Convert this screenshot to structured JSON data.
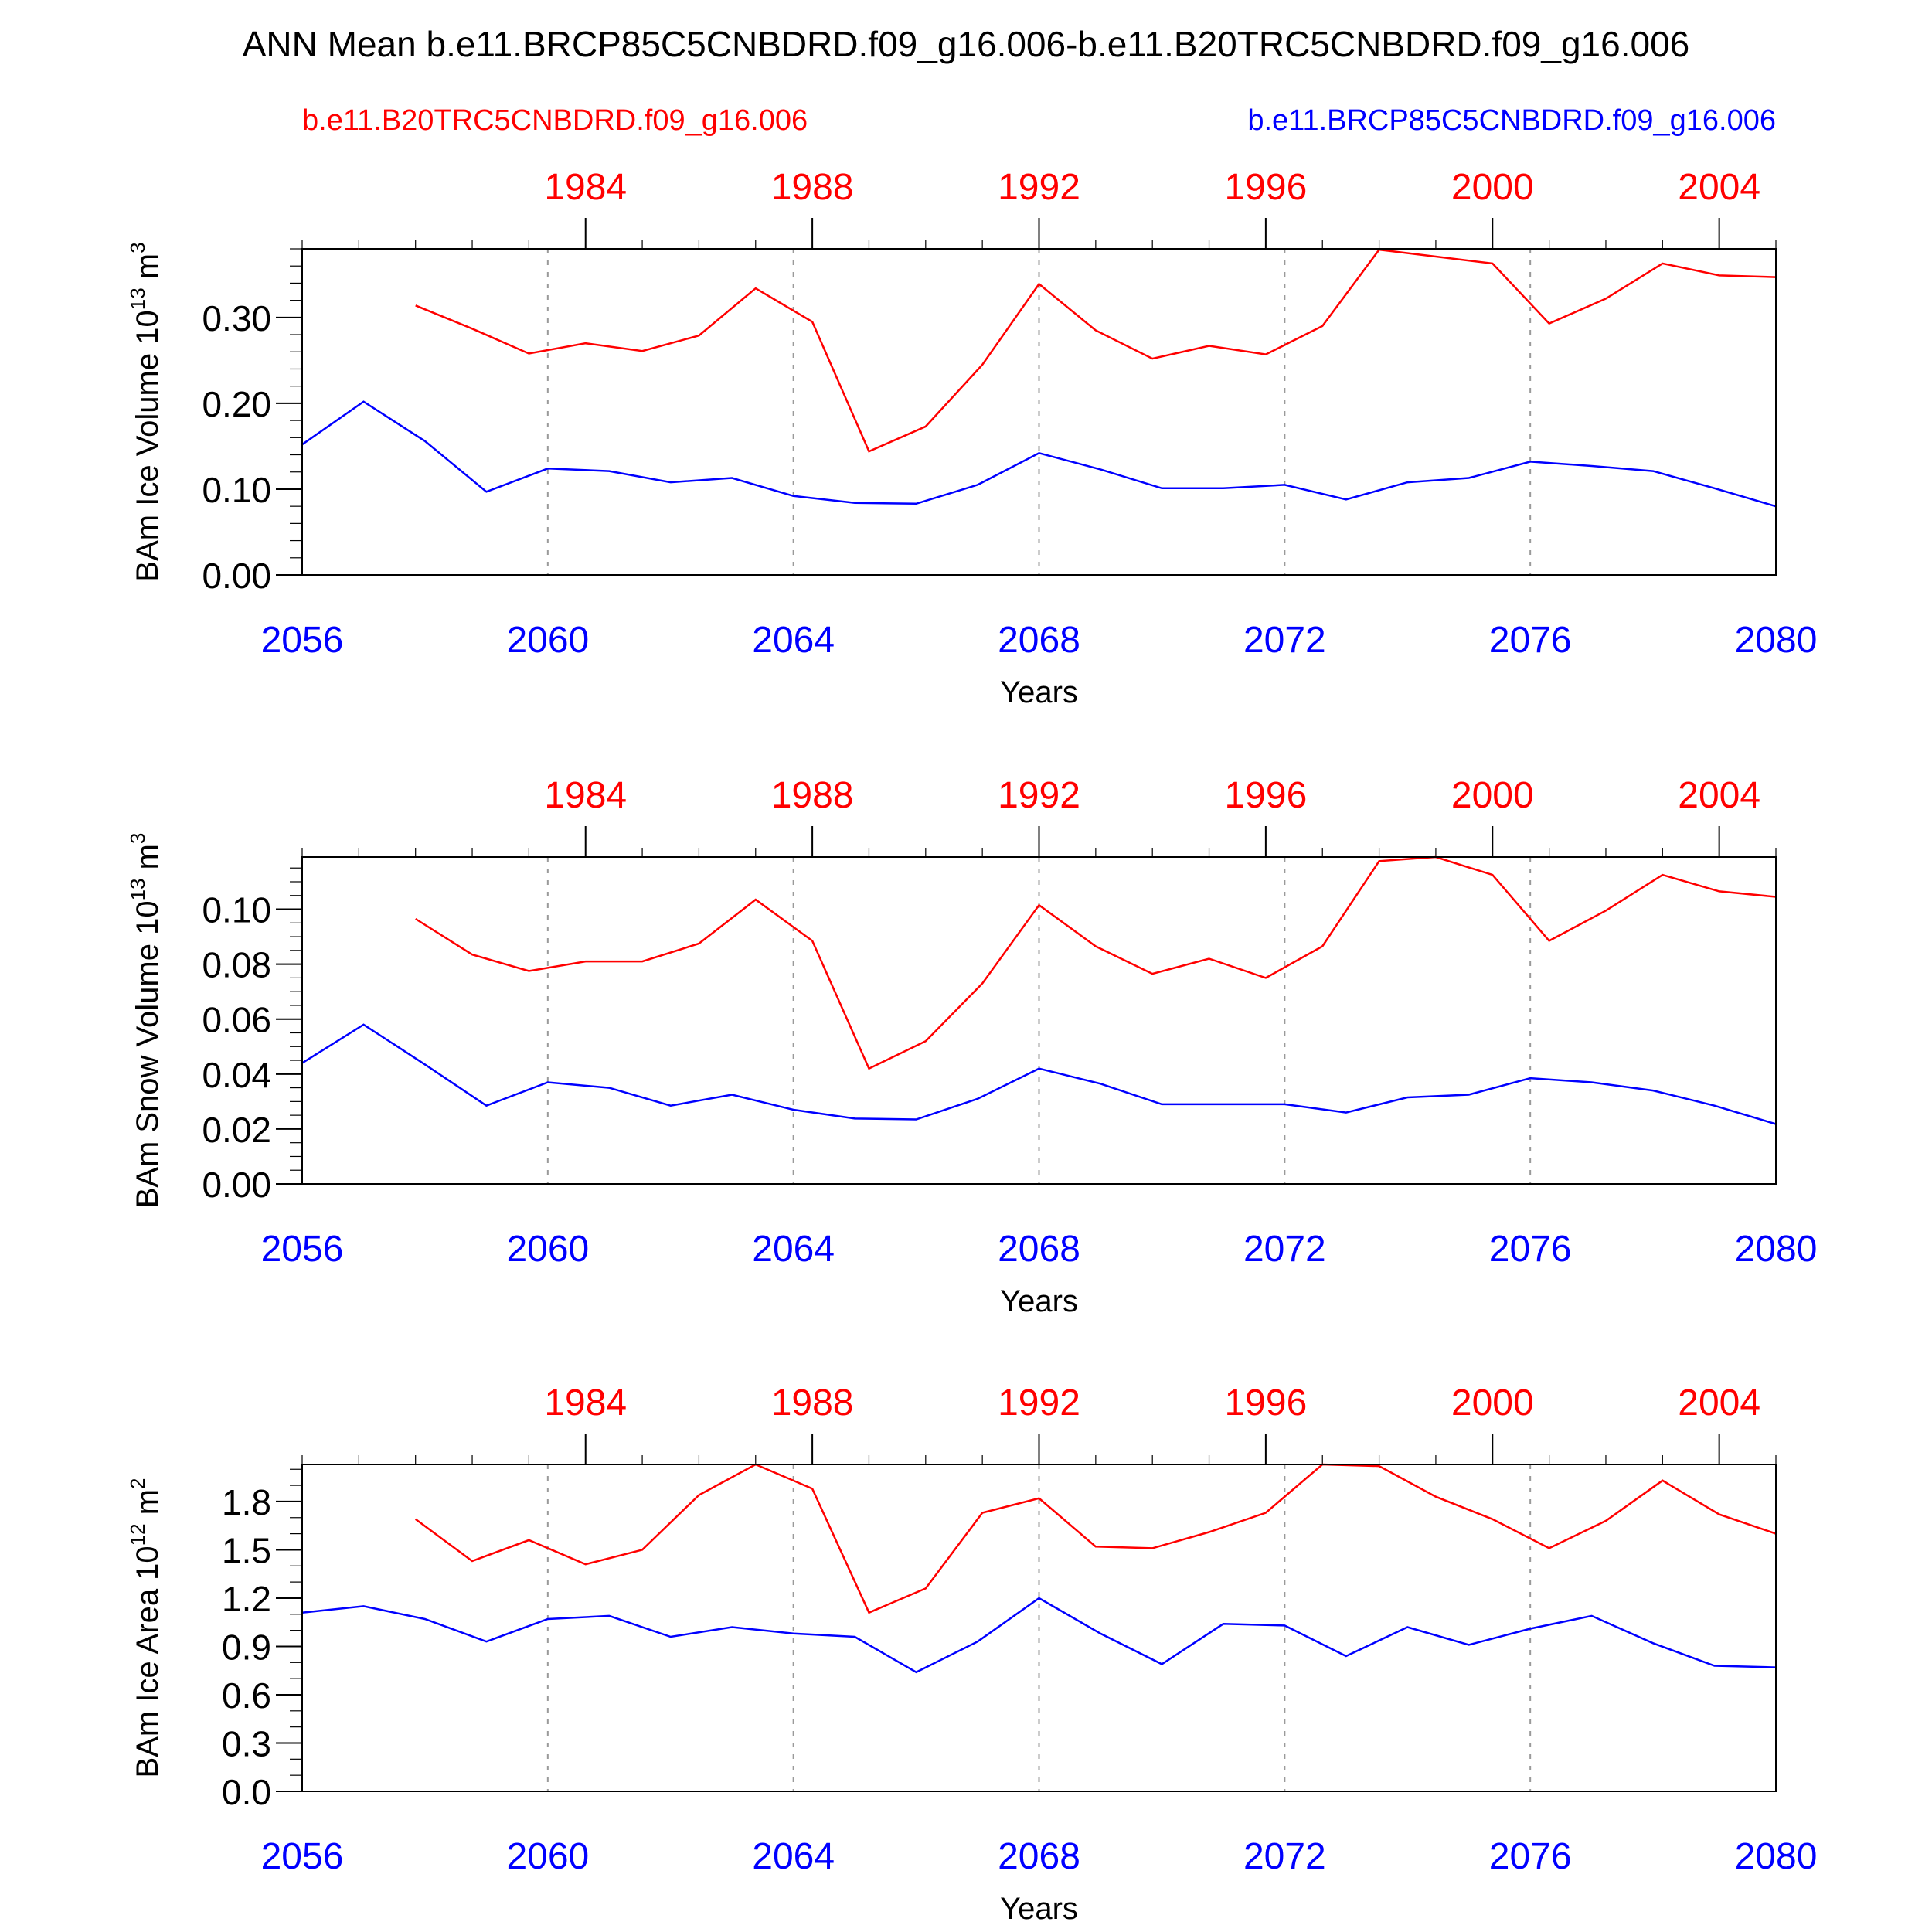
{
  "page_title": "ANN Mean b.e11.BRCP85C5CNBDRD.f09_g16.006-b.e11.B20TRC5CNBDRD.f09_g16.006",
  "legend": {
    "red_case": "b.e11.B20TRC5CNBDRD.f09_g16.006",
    "blue_case": "b.e11.BRCP85C5CNBDRD.f09_g16.006"
  },
  "colors": {
    "red": "#ff0000",
    "blue": "#0000ff",
    "grid": "#9a9a9a",
    "axis": "#000000"
  },
  "chart_data": [
    {
      "type": "line",
      "ylabel": "BAm Ice Volume 10",
      "ylabel_exp": "13",
      "ylabel_unit": " m",
      "ylabel_unit_exp": "3",
      "xlabel": "Years",
      "ylim": [
        0,
        0.38
      ],
      "y_major_ticks": [
        0,
        0.1,
        0.2,
        0.3
      ],
      "y_tick_labels": [
        "0.00",
        "0.10",
        "0.20",
        "0.30"
      ],
      "y_minor_step": 0.02,
      "x_bottom": {
        "range": [
          2056,
          2080
        ],
        "ticks": [
          2056,
          2060,
          2064,
          2068,
          2072,
          2076,
          2080
        ],
        "labels": [
          "2056",
          "2060",
          "2064",
          "2068",
          "2072",
          "2076",
          "2080"
        ]
      },
      "x_top": {
        "range": [
          1979,
          2005
        ],
        "ticks": [
          1984,
          1988,
          1992,
          1996,
          2000,
          2004
        ],
        "labels": [
          "1984",
          "1988",
          "1992",
          "1996",
          "2000",
          "2004"
        ]
      },
      "series": [
        {
          "name": "b.e11.B20TRC5CNBDRD.f09_g16.006",
          "axis": "top",
          "color": "#ff0000",
          "x": [
            1981,
            1982,
            1983,
            1984,
            1985,
            1986,
            1987,
            1988,
            1989,
            1990,
            1991,
            1992,
            1993,
            1994,
            1995,
            1996,
            1997,
            1998,
            1999,
            2000,
            2001,
            2002,
            2003,
            2004,
            2005
          ],
          "values": [
            0.314,
            0.287,
            0.258,
            0.27,
            0.261,
            0.279,
            0.334,
            0.295,
            0.144,
            0.173,
            0.245,
            0.339,
            0.285,
            0.252,
            0.267,
            0.257,
            0.29,
            0.379,
            0.371,
            0.363,
            0.293,
            0.322,
            0.363,
            0.349,
            0.347
          ]
        },
        {
          "name": "b.e11.BRCP85C5CNBDRD.f09_g16.006",
          "axis": "bottom",
          "color": "#0000ff",
          "x": [
            2056,
            2057,
            2058,
            2059,
            2060,
            2061,
            2062,
            2063,
            2064,
            2065,
            2066,
            2067,
            2068,
            2069,
            2070,
            2071,
            2072,
            2073,
            2074,
            2075,
            2076,
            2077,
            2078,
            2079,
            2080
          ],
          "values": [
            0.152,
            0.202,
            0.156,
            0.097,
            0.124,
            0.121,
            0.108,
            0.113,
            0.092,
            0.084,
            0.083,
            0.105,
            0.142,
            0.123,
            0.101,
            0.101,
            0.105,
            0.088,
            0.108,
            0.113,
            0.132,
            0.127,
            0.121,
            0.101,
            0.08
          ]
        }
      ]
    },
    {
      "type": "line",
      "ylabel": "BAm Snow Volume 10",
      "ylabel_exp": "13",
      "ylabel_unit": " m",
      "ylabel_unit_exp": "3",
      "xlabel": "Years",
      "ylim": [
        0,
        0.119
      ],
      "y_major_ticks": [
        0,
        0.02,
        0.04,
        0.06,
        0.08,
        0.1
      ],
      "y_tick_labels": [
        "0.00",
        "0.02",
        "0.04",
        "0.06",
        "0.08",
        "0.10"
      ],
      "y_minor_step": 0.005,
      "x_bottom": {
        "range": [
          2056,
          2080
        ],
        "ticks": [
          2056,
          2060,
          2064,
          2068,
          2072,
          2076,
          2080
        ],
        "labels": [
          "2056",
          "2060",
          "2064",
          "2068",
          "2072",
          "2076",
          "2080"
        ]
      },
      "x_top": {
        "range": [
          1979,
          2005
        ],
        "ticks": [
          1984,
          1988,
          1992,
          1996,
          2000,
          2004
        ],
        "labels": [
          "1984",
          "1988",
          "1992",
          "1996",
          "2000",
          "2004"
        ]
      },
      "series": [
        {
          "name": "b.e11.B20TRC5CNBDRD.f09_g16.006",
          "axis": "top",
          "color": "#ff0000",
          "x": [
            1981,
            1982,
            1983,
            1984,
            1985,
            1986,
            1987,
            1988,
            1989,
            1990,
            1991,
            1992,
            1993,
            1994,
            1995,
            1996,
            1997,
            1998,
            1999,
            2000,
            2001,
            2002,
            2003,
            2004,
            2005
          ],
          "values": [
            0.0965,
            0.0835,
            0.0775,
            0.081,
            0.081,
            0.0875,
            0.1035,
            0.0885,
            0.042,
            0.052,
            0.073,
            0.1015,
            0.0865,
            0.0765,
            0.082,
            0.075,
            0.0865,
            0.1175,
            0.119,
            0.1125,
            0.0885,
            0.0995,
            0.1125,
            0.1065,
            0.1045
          ]
        },
        {
          "name": "b.e11.BRCP85C5CNBDRD.f09_g16.006",
          "axis": "bottom",
          "color": "#0000ff",
          "x": [
            2056,
            2057,
            2058,
            2059,
            2060,
            2061,
            2062,
            2063,
            2064,
            2065,
            2066,
            2067,
            2068,
            2069,
            2070,
            2071,
            2072,
            2073,
            2074,
            2075,
            2076,
            2077,
            2078,
            2079,
            2080
          ],
          "values": [
            0.044,
            0.058,
            0.0435,
            0.0285,
            0.037,
            0.035,
            0.0285,
            0.0325,
            0.027,
            0.0238,
            0.0235,
            0.031,
            0.042,
            0.0365,
            0.029,
            0.029,
            0.029,
            0.026,
            0.0315,
            0.0325,
            0.0385,
            0.037,
            0.034,
            0.0285,
            0.0218
          ]
        }
      ]
    },
    {
      "type": "line",
      "ylabel": "BAm Ice Area 10",
      "ylabel_exp": "12",
      "ylabel_unit": " m",
      "ylabel_unit_exp": "2",
      "xlabel": "Years",
      "ylim": [
        0,
        2.03
      ],
      "y_major_ticks": [
        0,
        0.3,
        0.6,
        0.9,
        1.2,
        1.5,
        1.8
      ],
      "y_tick_labels": [
        "0.0",
        "0.3",
        "0.6",
        "0.9",
        "1.2",
        "1.5",
        "1.8"
      ],
      "y_minor_step": 0.1,
      "x_bottom": {
        "range": [
          2056,
          2080
        ],
        "ticks": [
          2056,
          2060,
          2064,
          2068,
          2072,
          2076,
          2080
        ],
        "labels": [
          "2056",
          "2060",
          "2064",
          "2068",
          "2072",
          "2076",
          "2080"
        ]
      },
      "x_top": {
        "range": [
          1979,
          2005
        ],
        "ticks": [
          1984,
          1988,
          1992,
          1996,
          2000,
          2004
        ],
        "labels": [
          "1984",
          "1988",
          "1992",
          "1996",
          "2000",
          "2004"
        ]
      },
      "series": [
        {
          "name": "b.e11.B20TRC5CNBDRD.f09_g16.006",
          "axis": "top",
          "color": "#ff0000",
          "x": [
            1981,
            1982,
            1983,
            1984,
            1985,
            1986,
            1987,
            1988,
            1989,
            1990,
            1991,
            1992,
            1993,
            1994,
            1995,
            1996,
            1997,
            1998,
            1999,
            2000,
            2001,
            2002,
            2003,
            2004,
            2005
          ],
          "values": [
            1.69,
            1.43,
            1.56,
            1.41,
            1.5,
            1.84,
            2.03,
            1.88,
            1.11,
            1.26,
            1.73,
            1.82,
            1.52,
            1.51,
            1.61,
            1.73,
            2.03,
            2.02,
            1.83,
            1.69,
            1.51,
            1.68,
            1.93,
            1.72,
            1.6
          ]
        },
        {
          "name": "b.e11.BRCP85C5CNBDRD.f09_g16.006",
          "axis": "bottom",
          "color": "#0000ff",
          "x": [
            2056,
            2057,
            2058,
            2059,
            2060,
            2061,
            2062,
            2063,
            2064,
            2065,
            2066,
            2067,
            2068,
            2069,
            2070,
            2071,
            2072,
            2073,
            2074,
            2075,
            2076,
            2077,
            2078,
            2079,
            2080
          ],
          "values": [
            1.11,
            1.15,
            1.07,
            0.93,
            1.07,
            1.09,
            0.96,
            1.02,
            0.98,
            0.96,
            0.74,
            0.93,
            1.2,
            0.98,
            0.79,
            1.04,
            1.03,
            0.84,
            1.02,
            0.91,
            1.01,
            1.09,
            0.92,
            0.78,
            0.77
          ]
        }
      ]
    }
  ]
}
